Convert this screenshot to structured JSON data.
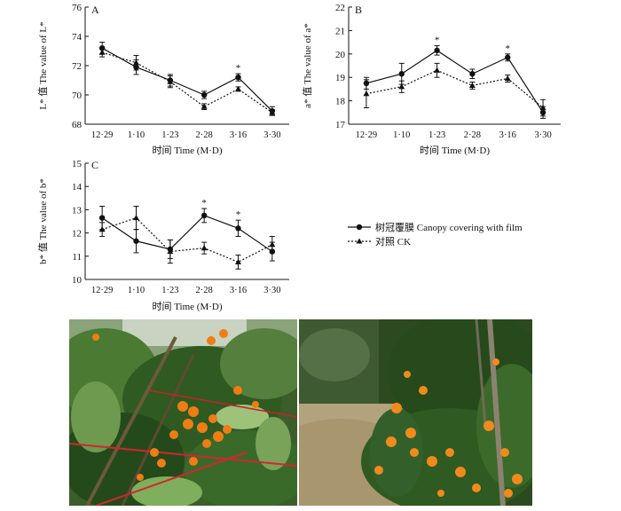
{
  "chart_data": [
    {
      "type": "line",
      "panel": "A",
      "categories": [
        "12·29",
        "1·10",
        "1·23",
        "2·28",
        "3·16",
        "3·30"
      ],
      "xlabel": "时间 Time (M·D)",
      "ylabel": "L* 值 The value of L*",
      "ylim": [
        68,
        76
      ],
      "yticks": [
        68,
        70,
        72,
        74,
        76
      ],
      "series": [
        {
          "name": "树冠覆膜 Canopy covering with film",
          "values": [
            73.2,
            71.9,
            71.0,
            70.0,
            71.2,
            68.9
          ],
          "err": [
            0.4,
            0.5,
            0.4,
            0.25,
            0.25,
            0.3
          ]
        },
        {
          "name": "对照 CK",
          "values": [
            72.9,
            72.2,
            70.9,
            69.2,
            70.4,
            68.8
          ],
          "err": [
            0.3,
            0.5,
            0.4,
            0.2,
            0.15,
            0.2
          ]
        }
      ],
      "significance": [
        "",
        "",
        "",
        "",
        "*",
        ""
      ]
    },
    {
      "type": "line",
      "panel": "B",
      "categories": [
        "12·29",
        "1·10",
        "1·23",
        "2·28",
        "3·16",
        "3·30"
      ],
      "xlabel": "时间 Time (M·D)",
      "ylabel": "a* 值 The value of a*",
      "ylim": [
        17,
        22
      ],
      "yticks": [
        17,
        18,
        19,
        20,
        21,
        22
      ],
      "series": [
        {
          "name": "树冠覆膜 Canopy covering with film",
          "values": [
            18.75,
            19.15,
            20.15,
            19.15,
            19.85,
            17.5
          ],
          "err": [
            0.25,
            0.45,
            0.2,
            0.2,
            0.15,
            0.25
          ]
        },
        {
          "name": "对照 CK",
          "values": [
            18.3,
            18.6,
            19.3,
            18.65,
            18.95,
            17.7
          ],
          "err": [
            0.6,
            0.25,
            0.3,
            0.15,
            0.15,
            0.35
          ]
        }
      ],
      "significance": [
        "",
        "",
        "*",
        "",
        "*",
        ""
      ]
    },
    {
      "type": "line",
      "panel": "C",
      "categories": [
        "12·29",
        "1·10",
        "1·23",
        "2·28",
        "3·16",
        "3·30"
      ],
      "xlabel": "时间 Time (M·D)",
      "ylabel": "b* 值 The value of b*",
      "ylim": [
        10,
        15
      ],
      "yticks": [
        10,
        11,
        12,
        13,
        14,
        15
      ],
      "series": [
        {
          "name": "树冠覆膜 Canopy covering with film",
          "values": [
            12.65,
            11.65,
            11.3,
            12.75,
            12.2,
            11.2
          ],
          "err": [
            0.5,
            0.5,
            0.4,
            0.3,
            0.35,
            0.4
          ]
        },
        {
          "name": "对照 CK",
          "values": [
            12.15,
            12.65,
            11.2,
            11.35,
            10.75,
            11.5
          ],
          "err": [
            0.3,
            0.5,
            0.5,
            0.25,
            0.3,
            0.35
          ]
        }
      ],
      "significance": [
        "",
        "",
        "",
        "*",
        "*",
        ""
      ]
    }
  ],
  "legend": {
    "film": "树冠覆膜 Canopy covering with film",
    "ck": "对照 CK"
  },
  "panel_labels": [
    "A",
    "B",
    "C"
  ],
  "star": "*",
  "colors": {
    "line": "#111111",
    "foliage": "#2f5a22",
    "fruit": "#ef7d14",
    "ground": "#b3a27e"
  }
}
